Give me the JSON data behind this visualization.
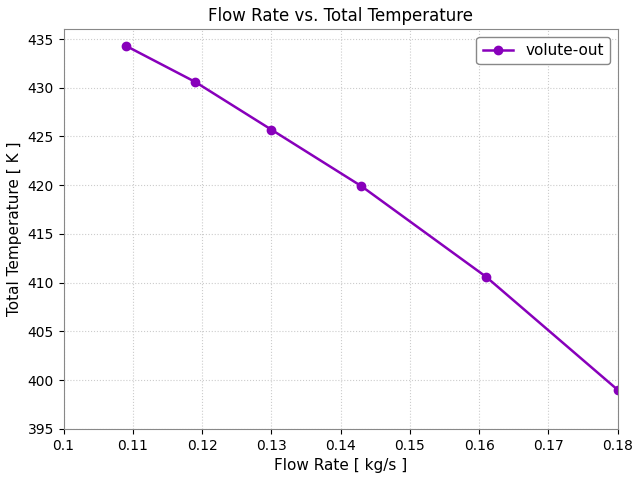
{
  "x": [
    0.109,
    0.119,
    0.13,
    0.143,
    0.161,
    0.18
  ],
  "y": [
    434.3,
    430.6,
    425.7,
    419.9,
    410.6,
    399.0
  ],
  "line_color": "#8800BB",
  "marker": "o",
  "marker_color": "#8800BB",
  "marker_size": 6,
  "line_width": 1.8,
  "title": "Flow Rate vs. Total Temperature",
  "xlabel": "Flow Rate [ kg/s ]",
  "ylabel": "Total Temperature [ K ]",
  "xlim": [
    0.1,
    0.18
  ],
  "ylim": [
    395,
    436
  ],
  "xtick_values": [
    0.1,
    0.11,
    0.12,
    0.13,
    0.14,
    0.15,
    0.16,
    0.17,
    0.18
  ],
  "xtick_labels": [
    "0.1",
    "0.11",
    "0.12",
    "0.13",
    "0.14",
    "0.15",
    "0.16",
    "0.17",
    "0.18"
  ],
  "yticks": [
    395,
    400,
    405,
    410,
    415,
    420,
    425,
    430,
    435
  ],
  "legend_label": "volute-out",
  "grid_color": "#cccccc",
  "background_color": "#ffffff",
  "title_fontsize": 12,
  "label_fontsize": 11,
  "tick_fontsize": 10
}
